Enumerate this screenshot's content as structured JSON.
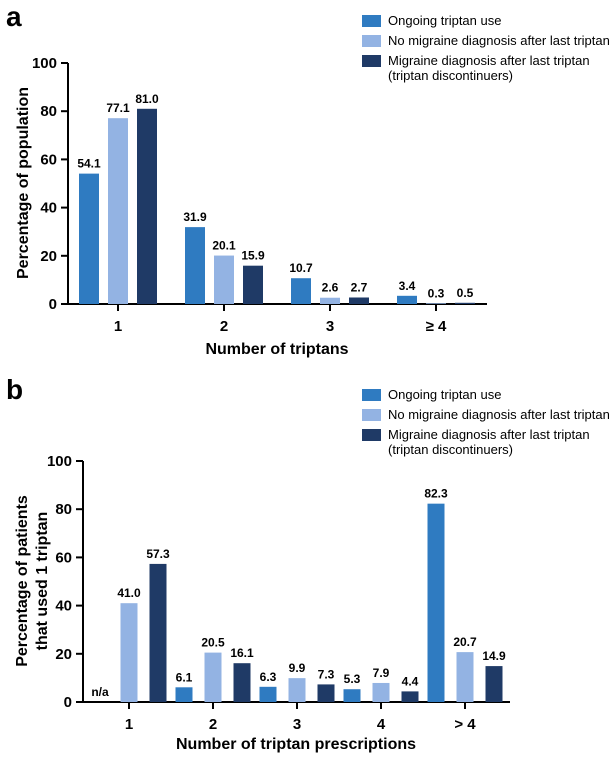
{
  "chart_data": [
    {
      "type": "bar",
      "panel_label": "a",
      "categories": [
        "1",
        "2",
        "3",
        "≥ 4"
      ],
      "series": [
        {
          "name": "Ongoing triptan use",
          "color": "#2f7bc1",
          "values": [
            54.1,
            31.9,
            10.7,
            3.4
          ],
          "labels": [
            "54.1",
            "31.9",
            "10.7",
            "3.4"
          ]
        },
        {
          "name": "No migraine diagnosis after last triptan",
          "color": "#93b3e3",
          "values": [
            77.1,
            20.1,
            2.6,
            0.3
          ],
          "labels": [
            "77.1",
            "20.1",
            "2.6",
            "0.3"
          ]
        },
        {
          "name_lines": [
            "Migraine diagnosis after last triptan",
            "(triptan discontinuers)"
          ],
          "color": "#1f3a66",
          "values": [
            81.0,
            15.9,
            2.7,
            0.5
          ],
          "labels": [
            "81.0",
            "15.9",
            "2.7",
            "0.5"
          ]
        }
      ],
      "ylabel": "Percentage of population",
      "xlabel": "Number of triptans",
      "ylim": [
        0,
        100
      ],
      "yticks": [
        "0",
        "20",
        "40",
        "60",
        "80",
        "100"
      ],
      "legend_position": "top-right"
    },
    {
      "type": "bar",
      "panel_label": "b",
      "categories": [
        "1",
        "2",
        "3",
        "4",
        "> 4"
      ],
      "series": [
        {
          "name": "Ongoing triptan use",
          "color": "#2f7bc1",
          "values": [
            null,
            6.1,
            6.3,
            5.3,
            82.3
          ],
          "labels": [
            "n/a",
            "6.1",
            "6.3",
            "5.3",
            "82.3"
          ]
        },
        {
          "name": "No migraine diagnosis after last triptan",
          "color": "#93b3e3",
          "values": [
            41.0,
            20.5,
            9.9,
            7.9,
            20.7
          ],
          "labels": [
            "41.0",
            "20.5",
            "9.9",
            "7.9",
            "20.7"
          ]
        },
        {
          "name_lines": [
            "Migraine diagnosis after last triptan",
            "(triptan discontinuers)"
          ],
          "color": "#1f3a66",
          "values": [
            57.3,
            16.1,
            7.3,
            4.4,
            14.9
          ],
          "labels": [
            "57.3",
            "16.1",
            "7.3",
            "4.4",
            "14.9"
          ]
        }
      ],
      "ylabel_lines": [
        "Percentage of patients",
        "that used 1 triptan"
      ],
      "xlabel": "Number of triptan prescriptions",
      "ylim": [
        0,
        100
      ],
      "yticks": [
        "0",
        "20",
        "40",
        "60",
        "80",
        "100"
      ],
      "legend_position": "top-right"
    }
  ]
}
